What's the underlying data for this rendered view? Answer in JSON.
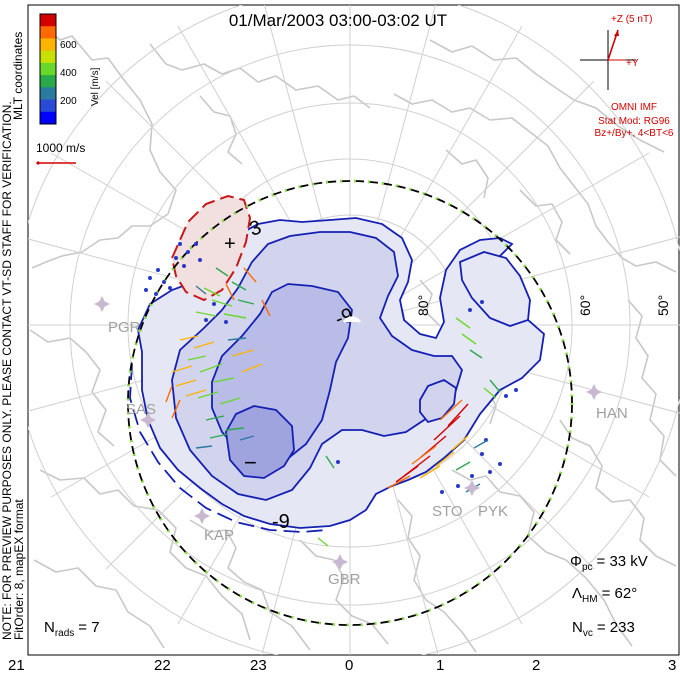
{
  "header": {
    "title": "01/Mar/2003 03:00-03:02 UT"
  },
  "colorbar": {
    "ticks": [
      "600",
      "400",
      "200"
    ],
    "unit_label": "Vel [m/s]",
    "colors": [
      "#d40000",
      "#ff6a00",
      "#ffb400",
      "#c8e000",
      "#6ad82a",
      "#2aa84a",
      "#2a7aa0",
      "#2a4ad8",
      "#0000ff"
    ]
  },
  "side_text": {
    "coords": "MLT coordinates",
    "note": "NOTE: FOR PREVIEW PURPOSES ONLY. PLEASE CONTACT VT-SD STAFF FOR VERIFICATION.",
    "fit": "FitOrder: 8, mapEX format"
  },
  "ref_vector": {
    "label": "1000 m/s"
  },
  "imf": {
    "z_label": "+Z (5 nT)",
    "y_label": "+Y",
    "source": "OMNI IMF",
    "model": "Stat Mod: RG96",
    "model_params": "Bz+/By+, 4<BT<6"
  },
  "lat_labels": [
    "80°",
    "60°",
    "50°"
  ],
  "stations": [
    "PGR",
    "SAS",
    "KAP",
    "GBR",
    "STO",
    "PYK",
    "HAN"
  ],
  "contours": {
    "max_symbol": "+",
    "min_symbol": "−",
    "max_value": "3",
    "min_value": "-9"
  },
  "stats": {
    "phi_symbol": "Φ",
    "phi_sub": "pc",
    "phi_value": "= 33 kV",
    "lambda_symbol": "Λ",
    "lambda_sub": "HM",
    "lambda_value": "= 62°",
    "nvc_symbol": "N",
    "nvc_sub": "vc",
    "nvc_value": "= 233",
    "nrads_symbol": "N",
    "nrads_sub": "rads",
    "nrads_value": "= 7"
  },
  "mlt_axis": [
    "21",
    "22",
    "23",
    "0",
    "1",
    "2",
    "3"
  ]
}
